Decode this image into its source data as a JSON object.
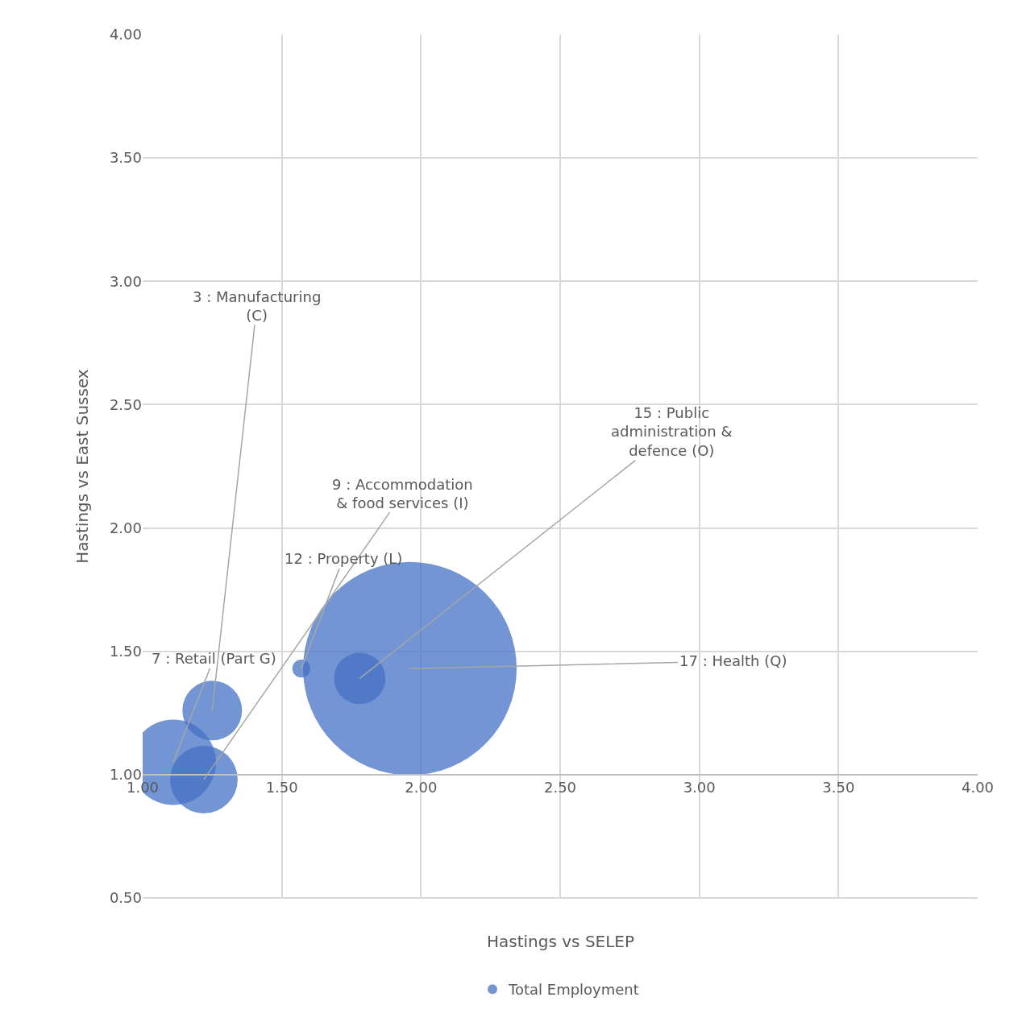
{
  "chart_data": {
    "type": "bubble",
    "xlabel": "Hastings vs SELEP",
    "ylabel": "Hastings vs East Sussex",
    "series": [
      {
        "name": "Total Employment",
        "color": "#4472c4",
        "x": [
          1.25,
          1.11,
          1.22,
          1.57,
          1.78,
          1.96
        ],
        "values": [
          1.26,
          1.05,
          0.98,
          1.43,
          1.39,
          1.43
        ],
        "sizes": [
          0.078,
          0.16,
          0.1,
          0.007,
          0.058,
          1
        ]
      }
    ],
    "xlim": [
      1.0,
      4.0
    ],
    "xticks": [
      {
        "value": 1.0,
        "label": "1.00"
      },
      {
        "value": 1.5,
        "label": "1.50"
      },
      {
        "value": 2.0,
        "label": "2.00"
      },
      {
        "value": 2.5,
        "label": "2.50"
      },
      {
        "value": 3.0,
        "label": "3.00"
      },
      {
        "value": 3.5,
        "label": "3.50"
      },
      {
        "value": 4.0,
        "label": "4.00"
      }
    ],
    "ylim": [
      0.5,
      4.0
    ],
    "yticks": [
      {
        "value": 0.5,
        "label": "0.50"
      },
      {
        "value": 1.0,
        "label": "1.00"
      },
      {
        "value": 1.5,
        "label": "1.50"
      },
      {
        "value": 2.0,
        "label": "2.00"
      },
      {
        "value": 2.5,
        "label": "2.50"
      },
      {
        "value": 3.0,
        "label": "3.00"
      },
      {
        "value": 3.5,
        "label": "3.50"
      },
      {
        "value": 4.0,
        "label": "4.00"
      }
    ],
    "grid": true,
    "legend": "bottom",
    "annotations": [
      {
        "text": "3 : Manufacturing\n(C)",
        "x": 1.25,
        "y": 1.26
      },
      {
        "text": "7 : Retail (Part G)",
        "x": 1.11,
        "y": 1.05
      },
      {
        "text": "9 : Accommodation\n& food services (I)",
        "x": 1.22,
        "y": 0.98
      },
      {
        "text": "12 : Property (L)",
        "x": 1.57,
        "y": 1.43
      },
      {
        "text": "15 : Public\nadministration &\ndefence (O)",
        "x": 1.78,
        "y": 1.39
      },
      {
        "text": "17 : Health (Q)",
        "x": 1.96,
        "y": 1.43
      }
    ]
  }
}
